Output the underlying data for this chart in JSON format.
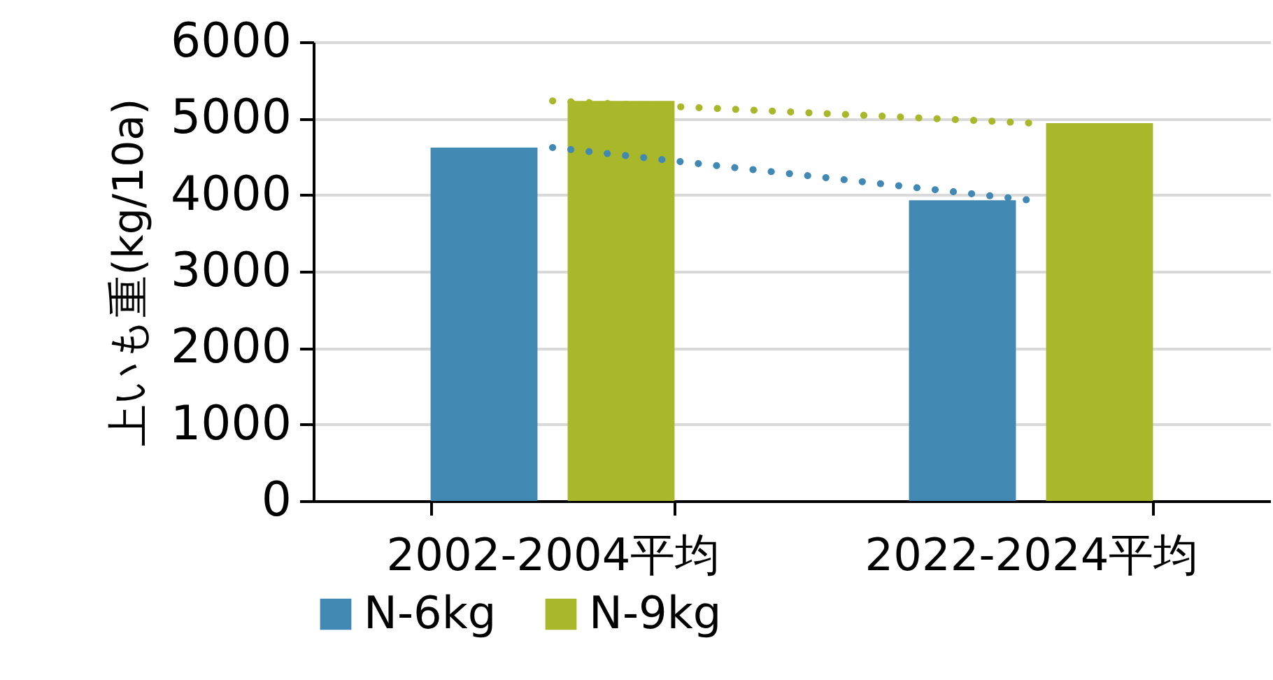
{
  "chart_data": {
    "type": "bar",
    "ylabel": "上いも重(kg/10a)",
    "categories": [
      "2002-2004平均",
      "2022-2024平均"
    ],
    "series": [
      {
        "name": "N-6kg",
        "color": "#4189b3",
        "values": [
          4620,
          3930
        ]
      },
      {
        "name": "N-9kg",
        "color": "#a8b82a",
        "values": [
          5230,
          4940
        ]
      },
      {
        "type": "line",
        "line_style": "dotted",
        "color": "#4189b3",
        "values": [
          4620,
          3930
        ]
      },
      {
        "type": "line",
        "line_style": "dotted",
        "color": "#a8b82a",
        "values": [
          5230,
          4940
        ]
      }
    ],
    "ylim": [
      0,
      6000
    ],
    "yticks": [
      0,
      1000,
      2000,
      3000,
      4000,
      5000,
      6000
    ],
    "grid": "y",
    "legend": "bottom"
  }
}
